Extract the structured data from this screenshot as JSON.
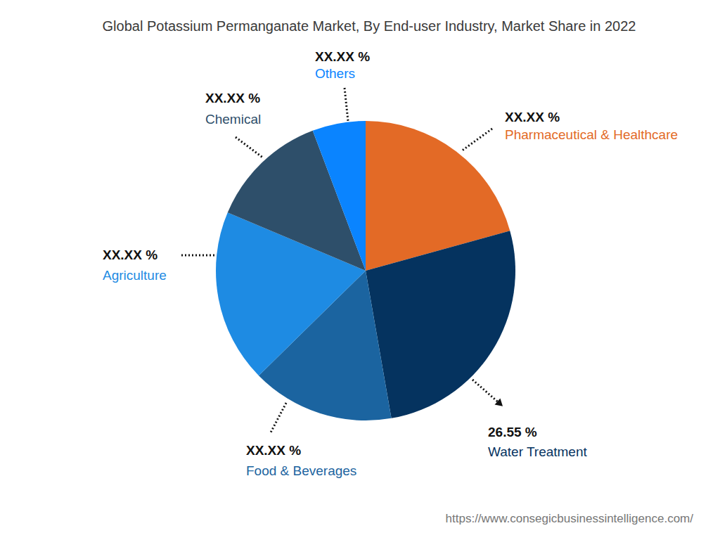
{
  "chart_data": {
    "type": "pie",
    "title": "Global Potassium Permanganate Market, By End-user Industry, Market Share in 2022",
    "categories": [
      "Pharmaceutical & Healthcare",
      "Water Treatment",
      "Food & Beverages",
      "Agriculture",
      "Chemical",
      "Others"
    ],
    "values": [
      20.7,
      26.55,
      15.4,
      18.7,
      12.9,
      5.75
    ],
    "value_labels": [
      "XX.XX %",
      "26.55 %",
      "XX.XX %",
      "XX.XX %",
      "XX.XX %",
      "XX.XX %"
    ],
    "colors": [
      "#e36a26",
      "#05335f",
      "#1b64a0",
      "#1e8be3",
      "#2e4f6a",
      "#0a84ff"
    ],
    "data_labels": true,
    "source": "https://www.consegicbusinessintelligence.com/"
  }
}
